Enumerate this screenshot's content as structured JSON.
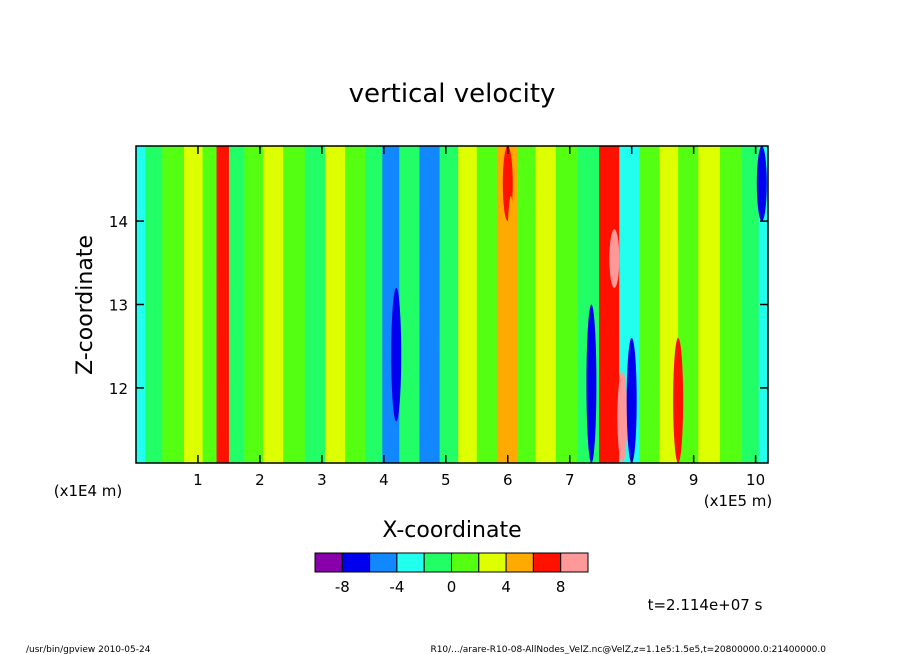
{
  "chart_data": {
    "type": "heatmap",
    "title": "vertical velocity",
    "xlabel": "X-coordinate",
    "ylabel": "Z-coordinate",
    "x_scale_note": "(x1E5 m)",
    "y_scale_note": "(x1E4 m)",
    "xlim": [
      0.0,
      10.2
    ],
    "ylim": [
      11.1,
      14.9
    ],
    "x_ticks": [
      1,
      2,
      3,
      4,
      5,
      6,
      7,
      8,
      9,
      10
    ],
    "y_ticks": [
      12,
      13,
      14
    ],
    "colorbar": {
      "colors": [
        "#8800aa",
        "#0000ee",
        "#1188ff",
        "#22ffee",
        "#22ff66",
        "#55ff11",
        "#ddff00",
        "#ffaa00",
        "#ff1100",
        "#ff9999"
      ],
      "tick_labels": [
        "-8",
        "-4",
        "0",
        "4",
        "8"
      ]
    },
    "bands": [
      {
        "x": 0.05,
        "level": 3
      },
      {
        "x": 0.25,
        "level": 4
      },
      {
        "x": 0.6,
        "level": 5
      },
      {
        "x": 0.95,
        "level": 6
      },
      {
        "x": 1.2,
        "level": 5
      },
      {
        "x": 1.4,
        "level": 8
      },
      {
        "x": 1.6,
        "level": 4
      },
      {
        "x": 1.9,
        "level": 5
      },
      {
        "x": 2.2,
        "level": 6
      },
      {
        "x": 2.55,
        "level": 5
      },
      {
        "x": 2.9,
        "level": 4
      },
      {
        "x": 3.2,
        "level": 6
      },
      {
        "x": 3.55,
        "level": 5
      },
      {
        "x": 3.85,
        "level": 4
      },
      {
        "x": 4.1,
        "level": 2
      },
      {
        "x": 4.4,
        "level": 4
      },
      {
        "x": 4.75,
        "level": 2
      },
      {
        "x": 5.05,
        "level": 4
      },
      {
        "x": 5.35,
        "level": 6
      },
      {
        "x": 5.65,
        "level": 5
      },
      {
        "x": 6.0,
        "level": 7
      },
      {
        "x": 6.3,
        "level": 5
      },
      {
        "x": 6.6,
        "level": 6
      },
      {
        "x": 6.95,
        "level": 5
      },
      {
        "x": 7.3,
        "level": 4
      },
      {
        "x": 7.65,
        "level": 8
      },
      {
        "x": 7.95,
        "level": 3
      },
      {
        "x": 8.3,
        "level": 5
      },
      {
        "x": 8.6,
        "level": 6
      },
      {
        "x": 8.9,
        "level": 5
      },
      {
        "x": 9.25,
        "level": 6
      },
      {
        "x": 9.6,
        "level": 5
      },
      {
        "x": 9.95,
        "level": 4
      },
      {
        "x": 10.15,
        "level": 3
      }
    ],
    "features": [
      {
        "x": 1.4,
        "z": [
          11.1,
          13.6
        ],
        "level": 8
      },
      {
        "x": 4.7,
        "z": [
          11.3,
          14.9
        ],
        "level": 2
      },
      {
        "x": 4.2,
        "z": [
          11.6,
          13.2
        ],
        "level": 1
      },
      {
        "x": 6.0,
        "z": [
          14.0,
          14.9
        ],
        "level": 8
      },
      {
        "x": 6.05,
        "z": [
          11.1,
          14.3
        ],
        "level": 7
      },
      {
        "x": 7.65,
        "z": [
          11.2,
          14.5
        ],
        "level": 8
      },
      {
        "x": 7.72,
        "z": [
          13.2,
          13.9
        ],
        "level": 9
      },
      {
        "x": 7.85,
        "z": [
          11.1,
          12.2
        ],
        "level": 9
      },
      {
        "x": 7.35,
        "z": [
          11.1,
          13.0
        ],
        "level": 1
      },
      {
        "x": 8.0,
        "z": [
          11.1,
          12.6
        ],
        "level": 1
      },
      {
        "x": 8.75,
        "z": [
          11.1,
          12.6
        ],
        "level": 8
      },
      {
        "x": 10.1,
        "z": [
          14.0,
          14.9
        ],
        "level": 1
      }
    ]
  },
  "annotations": {
    "time_label": "t=2.114e+07 s",
    "footer_left": "/usr/bin/gpview  2010-05-24",
    "footer_right": "R10/.../arare-R10-08-AllNodes_VelZ.nc@VelZ,z=1.1e5:1.5e5,t=20800000.0:21400000.0"
  }
}
